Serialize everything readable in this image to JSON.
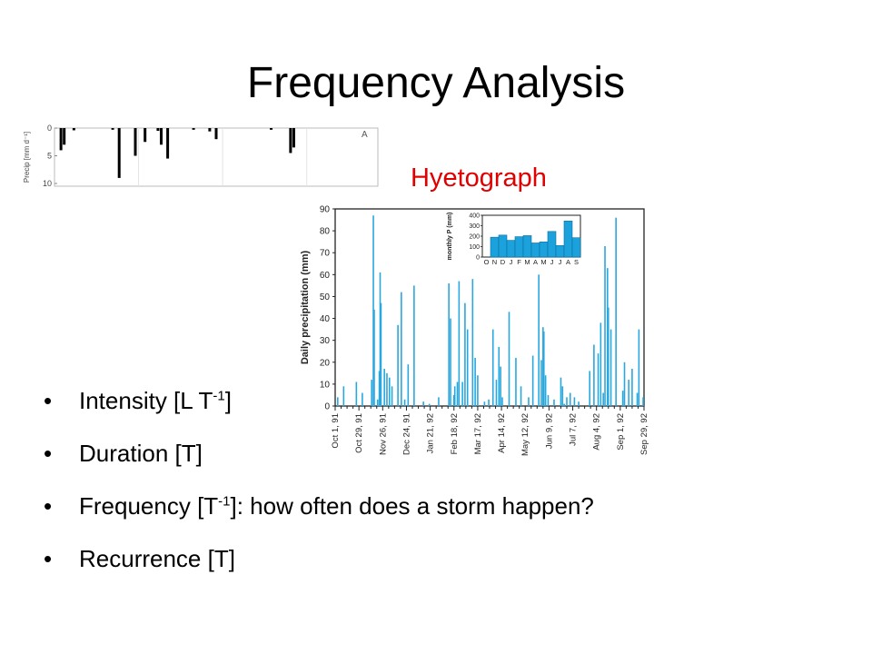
{
  "slide": {
    "title": "Frequency Analysis",
    "hyetograph_label": "Hyetograph",
    "bullets": [
      {
        "pre": "Intensity [L T",
        "sup": "-1",
        "post": "]"
      },
      {
        "pre": "Duration [T]",
        "sup": "",
        "post": ""
      },
      {
        "pre": "Frequency [T",
        "sup": "-1",
        "post": "]: how often does a storm happen?"
      },
      {
        "pre": "Recurrence [T]",
        "sup": "",
        "post": ""
      }
    ]
  },
  "chart_data": [
    {
      "type": "bar",
      "inverted": true,
      "ylabel": "Precip [mm d⁻¹]",
      "ylim": [
        0,
        10
      ],
      "yticks": [
        0,
        5,
        10
      ],
      "panel_label": "A",
      "grid": true,
      "bars": [
        {
          "x": 0.02,
          "v": 4.0
        },
        {
          "x": 0.03,
          "v": 3.0
        },
        {
          "x": 0.06,
          "v": 0.4
        },
        {
          "x": 0.18,
          "v": 0.3
        },
        {
          "x": 0.2,
          "v": 9.0
        },
        {
          "x": 0.25,
          "v": 5.0
        },
        {
          "x": 0.28,
          "v": 2.5
        },
        {
          "x": 0.32,
          "v": 0.5
        },
        {
          "x": 0.33,
          "v": 3.0
        },
        {
          "x": 0.35,
          "v": 5.5
        },
        {
          "x": 0.43,
          "v": 0.3
        },
        {
          "x": 0.48,
          "v": 0.6
        },
        {
          "x": 0.5,
          "v": 2.0
        },
        {
          "x": 0.67,
          "v": 0.3
        },
        {
          "x": 0.73,
          "v": 4.5
        },
        {
          "x": 0.74,
          "v": 3.5
        }
      ]
    },
    {
      "type": "bar",
      "ylabel": "Daily precipitation (mm)",
      "ylim": [
        0,
        90
      ],
      "yticks": [
        0,
        10,
        20,
        30,
        40,
        50,
        60,
        70,
        80,
        90
      ],
      "xlim": [
        0,
        364
      ],
      "xticks": [
        {
          "day": 0,
          "label": "Oct 1, 91"
        },
        {
          "day": 28,
          "label": "Oct 29, 91"
        },
        {
          "day": 56,
          "label": "Nov 26, 91"
        },
        {
          "day": 84,
          "label": "Dec 24, 91"
        },
        {
          "day": 112,
          "label": "Jan 21, 92"
        },
        {
          "day": 140,
          "label": "Feb 18, 92"
        },
        {
          "day": 168,
          "label": "Mar 17, 92"
        },
        {
          "day": 196,
          "label": "Apr 14, 92"
        },
        {
          "day": 224,
          "label": "May 12, 92"
        },
        {
          "day": 252,
          "label": "Jun 9, 92"
        },
        {
          "day": 280,
          "label": "Jul 7, 92"
        },
        {
          "day": 308,
          "label": "Aug 4, 92"
        },
        {
          "day": 336,
          "label": "Sep 1, 92"
        },
        {
          "day": 364,
          "label": "Sep 29, 92"
        }
      ],
      "daily": [
        [
          3,
          4
        ],
        [
          10,
          9
        ],
        [
          25,
          11
        ],
        [
          32,
          6
        ],
        [
          43,
          12
        ],
        [
          45,
          87
        ],
        [
          46,
          44
        ],
        [
          50,
          3
        ],
        [
          52,
          16
        ],
        [
          53,
          61
        ],
        [
          54,
          47
        ],
        [
          58,
          17
        ],
        [
          61,
          15
        ],
        [
          64,
          13
        ],
        [
          67,
          9
        ],
        [
          74,
          37
        ],
        [
          78,
          52
        ],
        [
          82,
          3
        ],
        [
          86,
          19
        ],
        [
          93,
          55
        ],
        [
          104,
          2
        ],
        [
          111,
          1
        ],
        [
          122,
          4
        ],
        [
          134,
          56
        ],
        [
          136,
          40
        ],
        [
          140,
          5
        ],
        [
          141,
          9
        ],
        [
          144,
          11
        ],
        [
          146,
          57
        ],
        [
          150,
          11
        ],
        [
          153,
          47
        ],
        [
          156,
          35
        ],
        [
          162,
          58
        ],
        [
          165,
          22
        ],
        [
          168,
          14
        ],
        [
          176,
          2
        ],
        [
          181,
          3
        ],
        [
          186,
          35
        ],
        [
          190,
          12
        ],
        [
          193,
          27
        ],
        [
          195,
          18
        ],
        [
          197,
          4
        ],
        [
          205,
          43
        ],
        [
          213,
          22
        ],
        [
          219,
          9
        ],
        [
          228,
          4
        ],
        [
          233,
          23
        ],
        [
          240,
          60
        ],
        [
          243,
          21
        ],
        [
          245,
          36
        ],
        [
          246,
          34
        ],
        [
          248,
          14
        ],
        [
          251,
          5
        ],
        [
          258,
          3
        ],
        [
          266,
          13
        ],
        [
          268,
          9
        ],
        [
          270,
          1
        ],
        [
          273,
          4
        ],
        [
          277,
          6
        ],
        [
          282,
          4
        ],
        [
          287,
          2
        ],
        [
          300,
          16
        ],
        [
          305,
          28
        ],
        [
          310,
          24
        ],
        [
          313,
          38
        ],
        [
          316,
          6
        ],
        [
          318,
          73
        ],
        [
          321,
          63
        ],
        [
          322,
          45
        ],
        [
          325,
          35
        ],
        [
          331,
          86
        ],
        [
          339,
          7
        ],
        [
          341,
          20
        ],
        [
          346,
          12
        ],
        [
          350,
          17
        ],
        [
          356,
          6
        ],
        [
          358,
          35
        ],
        [
          363,
          4
        ]
      ]
    },
    {
      "type": "bar",
      "ylabel": "monthly P (mm)",
      "ylim": [
        0,
        400
      ],
      "yticks": [
        0,
        100,
        200,
        300,
        400
      ],
      "categories": [
        "O",
        "N",
        "D",
        "J",
        "F",
        "M",
        "A",
        "M",
        "J",
        "J",
        "A",
        "S"
      ],
      "values": [
        0,
        190,
        210,
        160,
        195,
        205,
        135,
        145,
        245,
        110,
        345,
        185
      ]
    }
  ]
}
